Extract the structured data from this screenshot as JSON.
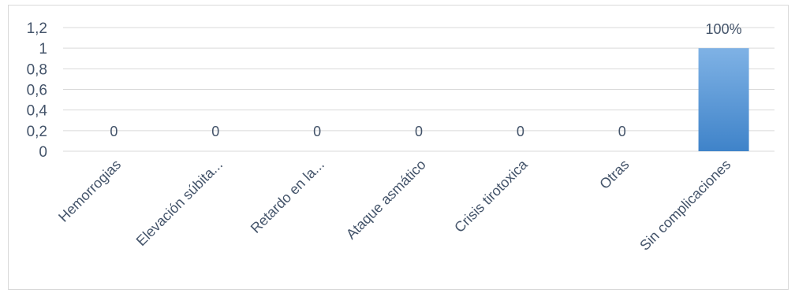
{
  "chart_data": {
    "type": "bar",
    "categories": [
      "Hemorrogias",
      "Elevación súbita...",
      "Retardo en la...",
      "Ataque asmático",
      "Crisis tirotoxica",
      "Otras",
      "Sin complicaciones"
    ],
    "values": [
      0,
      0,
      0,
      0,
      0,
      0,
      1
    ],
    "data_labels": [
      "0",
      "0",
      "0",
      "0",
      "0",
      "0",
      "100%"
    ],
    "y_ticks": [
      "0",
      "0,2",
      "0,4",
      "0,6",
      "0,8",
      "1",
      "1,2"
    ],
    "ylim": [
      0,
      1.2
    ],
    "grid": true,
    "legend": "none",
    "bar_color": "#5b9bd5",
    "bar_color_light": "#7fb2e5",
    "bar_color_dark": "#3f83c9"
  }
}
